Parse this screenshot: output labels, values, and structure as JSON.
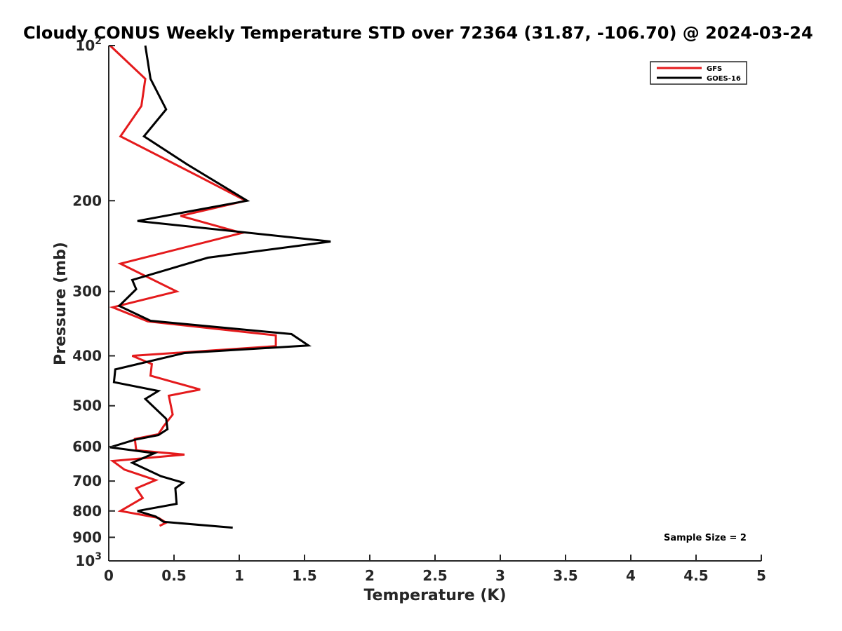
{
  "chart_data": {
    "type": "line",
    "title": "Cloudy CONUS Weekly Temperature STD over 72364 (31.87, -106.70) @ 2024-03-24",
    "xlabel": "Temperature (K)",
    "ylabel": "Pressure (mb)",
    "xlim": [
      0,
      5
    ],
    "ylim": [
      100,
      1000
    ],
    "y_scale": "log",
    "y_reversed": true,
    "x_ticks": [
      0,
      0.5,
      1,
      1.5,
      2,
      2.5,
      3,
      3.5,
      4,
      4.5,
      5
    ],
    "x_tick_labels": [
      "0",
      "0.5",
      "1",
      "1.5",
      "2",
      "2.5",
      "3",
      "3.5",
      "4",
      "4.5",
      "5"
    ],
    "y_ticks": [
      {
        "value": 100,
        "base": "10",
        "exp": "2"
      },
      {
        "value": 200,
        "label": "200"
      },
      {
        "value": 300,
        "label": "300"
      },
      {
        "value": 400,
        "label": "400"
      },
      {
        "value": 500,
        "label": "500"
      },
      {
        "value": 600,
        "label": "600"
      },
      {
        "value": 700,
        "label": "700"
      },
      {
        "value": 800,
        "label": "800"
      },
      {
        "value": 900,
        "label": "900"
      },
      {
        "value": 1000,
        "base": "10",
        "exp": "3"
      }
    ],
    "grid": false,
    "legend_position": "top-right",
    "annotation": "Sample Size = 2",
    "series": [
      {
        "name": "GFS",
        "color": "#e41a1c",
        "points": [
          [
            0.01,
            100
          ],
          [
            0.28,
            116
          ],
          [
            0.25,
            131
          ],
          [
            0.09,
            150
          ],
          [
            0.7,
            180
          ],
          [
            1.05,
            200
          ],
          [
            0.55,
            214
          ],
          [
            1.02,
            231
          ],
          [
            0.09,
            265
          ],
          [
            0.52,
            300
          ],
          [
            0.03,
            322
          ],
          [
            0.3,
            343
          ],
          [
            1.28,
            365
          ],
          [
            1.28,
            383
          ],
          [
            0.18,
            400
          ],
          [
            0.33,
            415
          ],
          [
            0.32,
            437
          ],
          [
            0.7,
            465
          ],
          [
            0.46,
            478
          ],
          [
            0.49,
            520
          ],
          [
            0.42,
            548
          ],
          [
            0.38,
            568
          ],
          [
            0.2,
            580
          ],
          [
            0.21,
            610
          ],
          [
            0.58,
            622
          ],
          [
            0.03,
            640
          ],
          [
            0.12,
            665
          ],
          [
            0.36,
            697
          ],
          [
            0.21,
            723
          ],
          [
            0.26,
            755
          ],
          [
            0.09,
            800
          ],
          [
            0.38,
            825
          ],
          [
            0.44,
            843
          ],
          [
            0.39,
            855
          ]
        ]
      },
      {
        "name": "GOES-16",
        "color": "#000000",
        "points": [
          [
            0.28,
            100
          ],
          [
            0.32,
            116
          ],
          [
            0.44,
            133
          ],
          [
            0.27,
            150
          ],
          [
            0.6,
            170
          ],
          [
            1.06,
            200
          ],
          [
            0.22,
            219
          ],
          [
            1.7,
            240
          ],
          [
            0.76,
            258
          ],
          [
            0.18,
            285
          ],
          [
            0.21,
            297
          ],
          [
            0.08,
            320
          ],
          [
            0.32,
            342
          ],
          [
            1.4,
            363
          ],
          [
            1.53,
            382
          ],
          [
            0.58,
            395
          ],
          [
            0.05,
            425
          ],
          [
            0.04,
            450
          ],
          [
            0.38,
            468
          ],
          [
            0.28,
            485
          ],
          [
            0.44,
            530
          ],
          [
            0.45,
            555
          ],
          [
            0.38,
            570
          ],
          [
            0.2,
            582
          ],
          [
            0.01,
            602
          ],
          [
            0.35,
            618
          ],
          [
            0.18,
            645
          ],
          [
            0.4,
            685
          ],
          [
            0.57,
            705
          ],
          [
            0.51,
            723
          ],
          [
            0.52,
            775
          ],
          [
            0.22,
            800
          ],
          [
            0.36,
            820
          ],
          [
            0.42,
            840
          ],
          [
            0.95,
            862
          ]
        ]
      }
    ]
  }
}
